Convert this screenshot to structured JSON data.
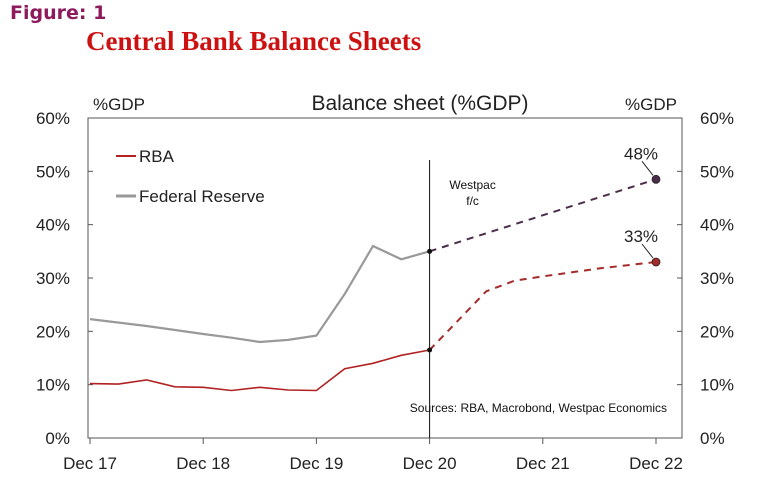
{
  "figure_label": "Figure: 1",
  "chart_data": {
    "type": "line",
    "title": "Central Bank Balance Sheets",
    "subtitle": "Balance sheet (%GDP)",
    "ylabel_left": "%GDP",
    "ylabel_right": "%GDP",
    "ylim": [
      0,
      60
    ],
    "y_ticks": [
      "0%",
      "10%",
      "20%",
      "30%",
      "40%",
      "50%",
      "60%"
    ],
    "x_range": [
      0,
      60
    ],
    "x_ticks": [
      {
        "x": 0,
        "label": "Dec 17"
      },
      {
        "x": 12,
        "label": "Dec 18"
      },
      {
        "x": 24,
        "label": "Dec 19"
      },
      {
        "x": 36,
        "label": "Dec 20"
      },
      {
        "x": 48,
        "label": "Dec 21"
      },
      {
        "x": 60,
        "label": "Dec 22"
      }
    ],
    "forecast_start_x": 36,
    "forecast_label": [
      "Westpac",
      "f/c"
    ],
    "source_note": "Sources: RBA, Macrobond, Westpac Economics",
    "series": [
      {
        "name": "RBA",
        "color": "#b22222",
        "forecast_color": "#a52a2a",
        "actual": [
          {
            "x": 0,
            "y": 10.2
          },
          {
            "x": 3,
            "y": 10.1
          },
          {
            "x": 6,
            "y": 10.9
          },
          {
            "x": 9,
            "y": 9.6
          },
          {
            "x": 12,
            "y": 9.5
          },
          {
            "x": 15,
            "y": 8.9
          },
          {
            "x": 18,
            "y": 9.5
          },
          {
            "x": 21,
            "y": 9.0
          },
          {
            "x": 24,
            "y": 8.9
          },
          {
            "x": 27,
            "y": 13.0
          },
          {
            "x": 30,
            "y": 14.0
          },
          {
            "x": 33,
            "y": 15.5
          },
          {
            "x": 36,
            "y": 16.5
          }
        ],
        "forecast": [
          {
            "x": 36,
            "y": 16.5
          },
          {
            "x": 39,
            "y": 22.0
          },
          {
            "x": 42,
            "y": 27.5
          },
          {
            "x": 45,
            "y": 29.5
          },
          {
            "x": 48,
            "y": 30.3
          },
          {
            "x": 54,
            "y": 31.8
          },
          {
            "x": 60,
            "y": 33.0
          }
        ],
        "end_label": "33%"
      },
      {
        "name": "Federal Reserve",
        "color": "#999999",
        "forecast_color": "#4b2d4b",
        "actual": [
          {
            "x": 0,
            "y": 22.3
          },
          {
            "x": 6,
            "y": 21.0
          },
          {
            "x": 12,
            "y": 19.5
          },
          {
            "x": 15,
            "y": 18.8
          },
          {
            "x": 18,
            "y": 18.0
          },
          {
            "x": 21,
            "y": 18.4
          },
          {
            "x": 24,
            "y": 19.2
          },
          {
            "x": 27,
            "y": 27.0
          },
          {
            "x": 30,
            "y": 36.0
          },
          {
            "x": 33,
            "y": 33.5
          },
          {
            "x": 36,
            "y": 35.0
          }
        ],
        "forecast": [
          {
            "x": 36,
            "y": 35.0
          },
          {
            "x": 60,
            "y": 48.5
          }
        ],
        "end_label": "48%"
      }
    ],
    "legend": [
      "RBA",
      "Federal Reserve"
    ]
  }
}
